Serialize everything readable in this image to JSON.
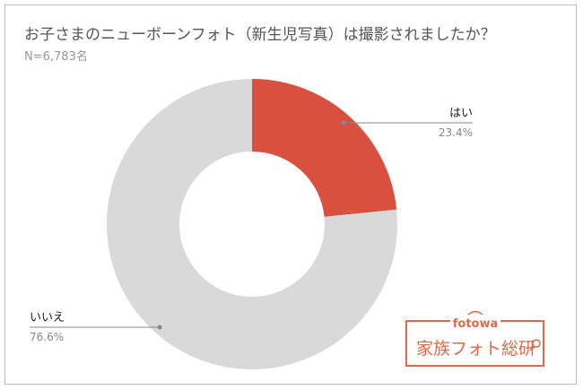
{
  "chart_data": {
    "type": "pie",
    "donut": true,
    "title": "お子さまのニューボーンフォト（新生児写真）は撮影されましたか？",
    "subtitle": "N=6,783名",
    "slices": [
      {
        "label": "はい",
        "percent_label": "23.4%",
        "value": 23.4,
        "color": "#d9503f"
      },
      {
        "label": "いいえ",
        "percent_label": "76.6%",
        "value": 76.6,
        "color": "#d9d9d9"
      }
    ],
    "legend": "none"
  },
  "logo": {
    "top": "fotowa",
    "bottom": "家族フォト総研"
  }
}
